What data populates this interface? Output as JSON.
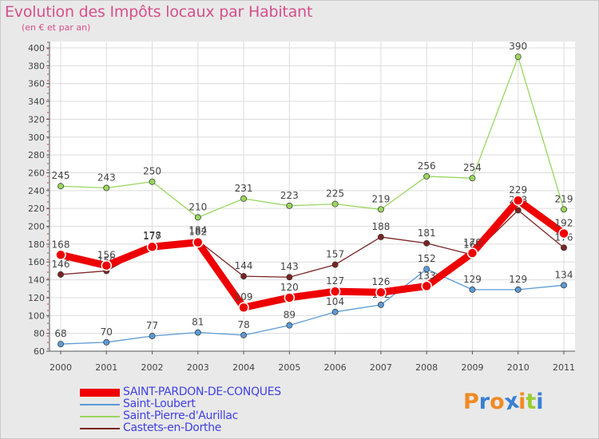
{
  "chart_data": {
    "type": "line",
    "title": "Evolution des Impôts locaux par Habitant",
    "subtitle": "(en € et par an)",
    "xlabel": "",
    "ylabel": "",
    "ylim": [
      60,
      400
    ],
    "ytick_step": 20,
    "grid": true,
    "legend_position": "bottom-left",
    "categories": [
      "2000",
      "2001",
      "2002",
      "2003",
      "2004",
      "2005",
      "2006",
      "2007",
      "2008",
      "2009",
      "2010",
      "2011"
    ],
    "series": [
      {
        "name": "SAINT-PARDON-DE-CONQUES",
        "color": "#ee0000",
        "highlight": true,
        "values": [
          168,
          156,
          177,
          182,
          109,
          120,
          127,
          126,
          133,
          170,
          229,
          192
        ]
      },
      {
        "name": "Saint-Loubert",
        "color": "#5b9ad5",
        "highlight": false,
        "values": [
          68,
          70,
          77,
          81,
          78,
          89,
          104,
          112,
          152,
          129,
          129,
          134
        ]
      },
      {
        "name": "Saint-Pierre-d'Aurillac",
        "color": "#99d65f",
        "highlight": false,
        "values": [
          245,
          243,
          250,
          210,
          231,
          223,
          225,
          219,
          256,
          254,
          390,
          219
        ]
      },
      {
        "name": "Castets-en-Dorthe",
        "color": "#7b2424",
        "highlight": false,
        "values": [
          146,
          150,
          178,
          184,
          144,
          143,
          157,
          188,
          181,
          168,
          218,
          176
        ]
      }
    ]
  },
  "logo": {
    "letters": [
      "P",
      "r",
      "o",
      "x",
      "i",
      "t",
      "i"
    ],
    "colors": [
      "#f08a24",
      "#3a7fd5",
      "#f08a24",
      "#3a7fd5",
      "#f08a24",
      "#9acd32",
      "#3a7fd5"
    ]
  }
}
